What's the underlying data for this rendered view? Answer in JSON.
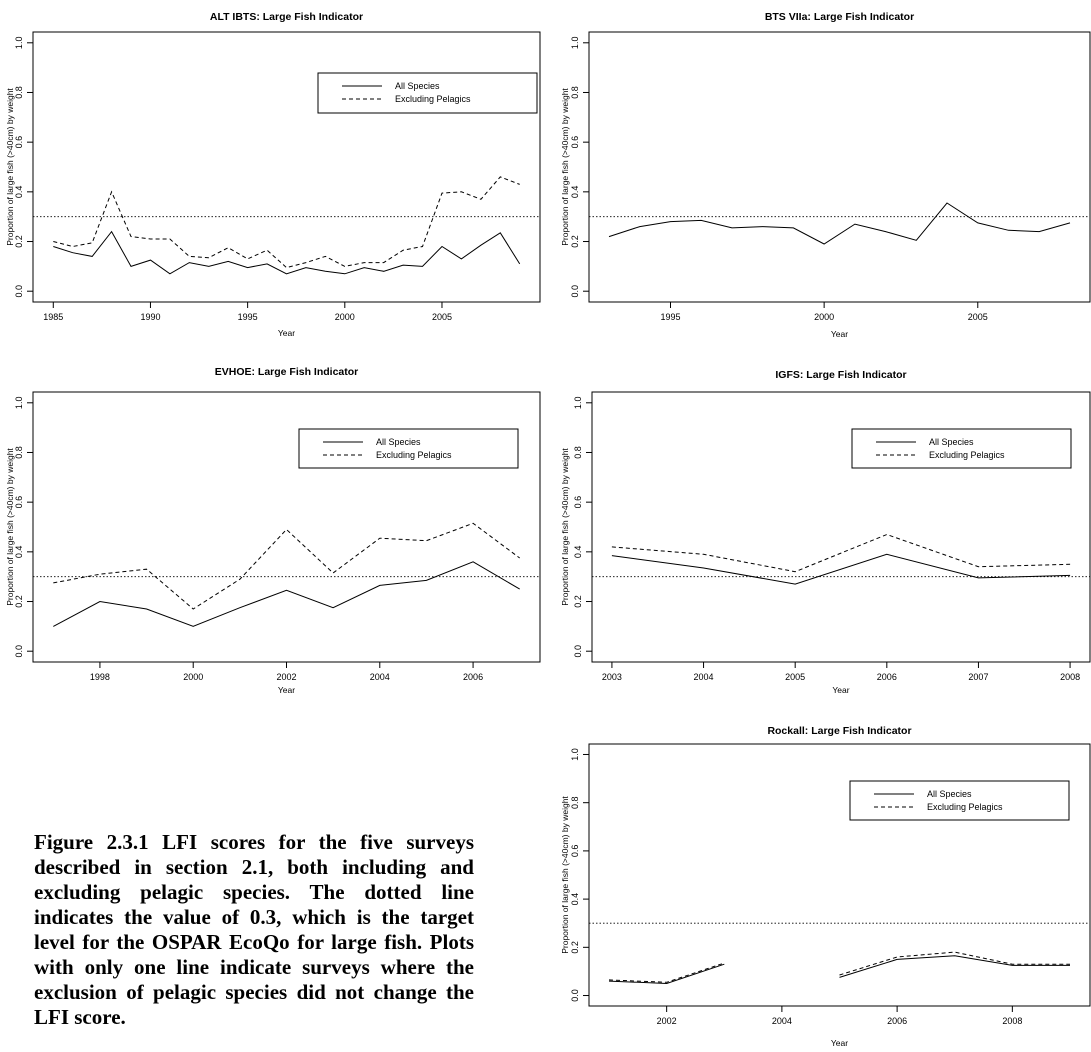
{
  "caption": "Figure 2.3.1 LFI scores for the five surveys described in section 2.1, both including and excluding pelagic species. The dotted line indicates the value of 0.3, which is the target level for the OSPAR EcoQo for large fish. Plots with only one line indicate surveys where the exclusion of pelagic species did not change the LFI score.",
  "chart_data": [
    {
      "type": "line",
      "title": "ALT IBTS: Large Fish Indicator",
      "xlabel": "Year",
      "ylabel": "Proportion of large fish (>40cm) by weight",
      "xlim": [
        1985,
        2009
      ],
      "ylim": [
        0,
        1
      ],
      "xticks": [
        1985,
        1990,
        1995,
        2000,
        2005
      ],
      "yticks": [
        0,
        0.2,
        0.4,
        0.6,
        0.8,
        1
      ],
      "reference_line": 0.3,
      "legend": "top-right",
      "series": [
        {
          "name": "All Species",
          "style": "solid",
          "x": [
            1985,
            1986,
            1987,
            1988,
            1989,
            1990,
            1991,
            1992,
            1993,
            1994,
            1995,
            1996,
            1997,
            1998,
            1999,
            2000,
            2001,
            2002,
            2003,
            2004,
            2005,
            2006,
            2007,
            2008,
            2009
          ],
          "y": [
            0.18,
            0.155,
            0.14,
            0.24,
            0.1,
            0.125,
            0.07,
            0.115,
            0.1,
            0.12,
            0.095,
            0.11,
            0.07,
            0.095,
            0.08,
            0.07,
            0.095,
            0.08,
            0.105,
            0.1,
            0.18,
            0.13,
            0.185,
            0.235,
            0.11
          ]
        },
        {
          "name": "Excluding Pelagics",
          "style": "dashed",
          "x": [
            1985,
            1986,
            1987,
            1988,
            1989,
            1990,
            1991,
            1992,
            1993,
            1994,
            1995,
            1996,
            1997,
            1998,
            1999,
            2000,
            2001,
            2002,
            2003,
            2004,
            2005,
            2006,
            2007,
            2008,
            2009
          ],
          "y": [
            0.2,
            0.18,
            0.195,
            0.4,
            0.22,
            0.21,
            0.21,
            0.14,
            0.135,
            0.175,
            0.13,
            0.165,
            0.095,
            0.115,
            0.14,
            0.1,
            0.115,
            0.115,
            0.165,
            0.18,
            0.395,
            0.4,
            0.37,
            0.46,
            0.43
          ]
        }
      ]
    },
    {
      "type": "line",
      "title": "BTS VIIa: Large Fish Indicator",
      "xlabel": "Year",
      "ylabel": "Proportion of large fish (>40cm) by weight",
      "xlim": [
        1993,
        2008
      ],
      "ylim": [
        0,
        1
      ],
      "xticks": [
        1995,
        2000,
        2005
      ],
      "yticks": [
        0,
        0.2,
        0.4,
        0.6,
        0.8,
        1
      ],
      "reference_line": 0.3,
      "series": [
        {
          "style": "solid",
          "x": [
            1993,
            1994,
            1995,
            1996,
            1997,
            1998,
            1999,
            2000,
            2001,
            2002,
            2003,
            2004,
            2005,
            2006,
            2007,
            2008
          ],
          "y": [
            0.22,
            0.26,
            0.28,
            0.285,
            0.255,
            0.26,
            0.255,
            0.19,
            0.27,
            0.24,
            0.205,
            0.355,
            0.275,
            0.245,
            0.24,
            0.275
          ]
        }
      ]
    },
    {
      "type": "line",
      "title": "EVHOE: Large Fish Indicator",
      "xlabel": "Year",
      "ylabel": "Proportion of large fish (>40cm) by weight",
      "xlim": [
        1997,
        2007
      ],
      "ylim": [
        0,
        1
      ],
      "xticks": [
        1998,
        2000,
        2002,
        2004,
        2006
      ],
      "yticks": [
        0,
        0.2,
        0.4,
        0.6,
        0.8,
        1
      ],
      "reference_line": 0.3,
      "legend": "top-right",
      "series": [
        {
          "name": "All Species",
          "style": "solid",
          "x": [
            1997,
            1998,
            1999,
            2000,
            2001,
            2002,
            2003,
            2004,
            2005,
            2006,
            2007
          ],
          "y": [
            0.1,
            0.2,
            0.17,
            0.1,
            0.175,
            0.245,
            0.175,
            0.265,
            0.285,
            0.36,
            0.25
          ]
        },
        {
          "name": "Excluding Pelagics",
          "style": "dashed",
          "x": [
            1997,
            1998,
            1999,
            2000,
            2001,
            2002,
            2003,
            2004,
            2005,
            2006,
            2007
          ],
          "y": [
            0.275,
            0.31,
            0.33,
            0.17,
            0.29,
            0.49,
            0.315,
            0.455,
            0.445,
            0.515,
            0.375
          ]
        }
      ]
    },
    {
      "type": "line",
      "title": "IGFS: Large Fish Indicator",
      "xlabel": "Year",
      "ylabel": "Proportion of large fish (>40cm) by weight",
      "xlim": [
        2003,
        2008
      ],
      "ylim": [
        0,
        1
      ],
      "xticks": [
        2003,
        2004,
        2005,
        2006,
        2007,
        2008
      ],
      "yticks": [
        0,
        0.2,
        0.4,
        0.6,
        0.8,
        1
      ],
      "reference_line": 0.3,
      "legend": "top-right",
      "series": [
        {
          "name": "All Species",
          "style": "solid",
          "x": [
            2003,
            2004,
            2005,
            2006,
            2007,
            2008
          ],
          "y": [
            0.385,
            0.335,
            0.27,
            0.39,
            0.295,
            0.305
          ]
        },
        {
          "name": "Excluding Pelagics",
          "style": "dashed",
          "x": [
            2003,
            2004,
            2005,
            2006,
            2007,
            2008
          ],
          "y": [
            0.42,
            0.39,
            0.32,
            0.47,
            0.34,
            0.35
          ]
        }
      ]
    },
    {
      "type": "line",
      "title": "Rockall: Large Fish Indicator",
      "xlabel": "Year",
      "ylabel": "Proportion of large fish (>40cm) by weight",
      "xlim": [
        2001,
        2009
      ],
      "ylim": [
        0,
        1
      ],
      "xticks": [
        2002,
        2004,
        2006,
        2008
      ],
      "yticks": [
        0,
        0.2,
        0.4,
        0.6,
        0.8,
        1
      ],
      "reference_line": 0.3,
      "legend": "top-right",
      "series": [
        {
          "name": "All Species",
          "style": "solid",
          "segments": [
            {
              "x": [
                2001,
                2002,
                2003
              ],
              "y": [
                0.06,
                0.05,
                0.13
              ]
            },
            {
              "x": [
                2005,
                2006,
                2007,
                2008,
                2009
              ],
              "y": [
                0.075,
                0.15,
                0.165,
                0.125,
                0.125
              ]
            }
          ]
        },
        {
          "name": "Excluding Pelagics",
          "style": "dashed",
          "segments": [
            {
              "x": [
                2001,
                2002,
                2003
              ],
              "y": [
                0.065,
                0.055,
                0.135
              ]
            },
            {
              "x": [
                2005,
                2006,
                2007,
                2008,
                2009
              ],
              "y": [
                0.085,
                0.16,
                0.18,
                0.13,
                0.13
              ]
            }
          ]
        }
      ]
    }
  ]
}
